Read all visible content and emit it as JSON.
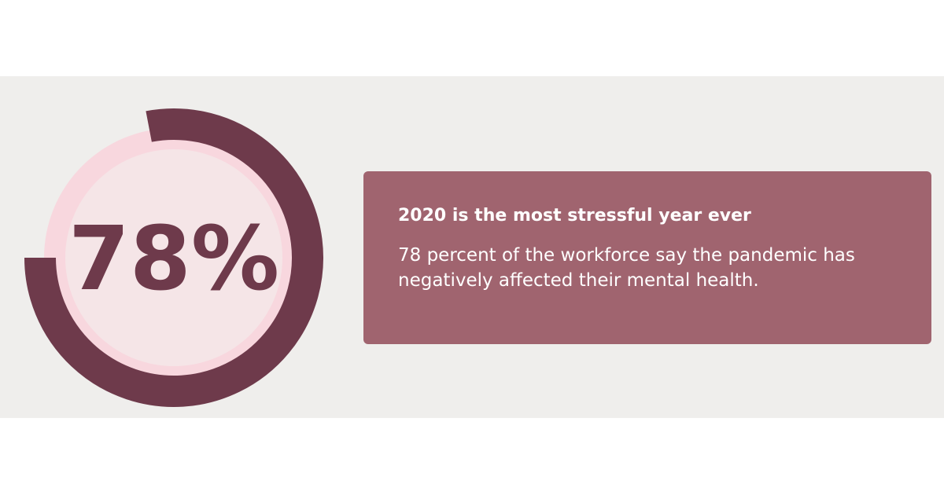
{
  "chart_data": {
    "type": "donut",
    "value": 78,
    "value_label": "78%",
    "max": 100,
    "color": "#6e3a4b",
    "track_color": "#f8d7de",
    "center_color": "#f5e5e7",
    "title": "2020 is the most stressful year ever",
    "description": "78 percent of the workforce say the pandemic has negatively affected their mental health."
  }
}
